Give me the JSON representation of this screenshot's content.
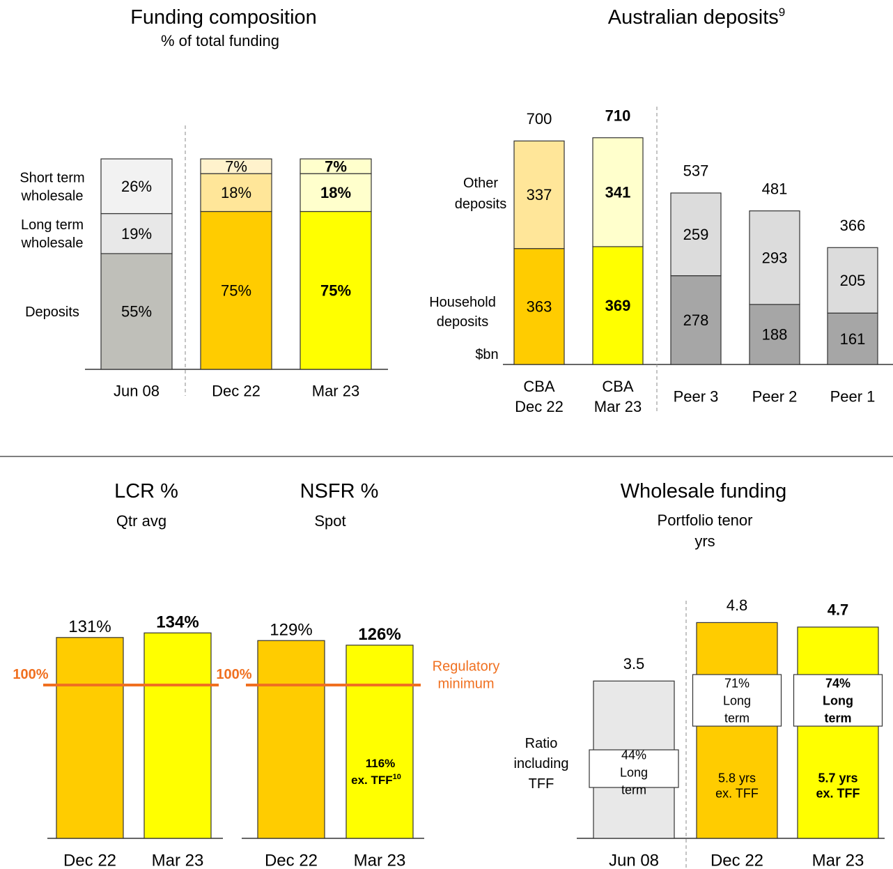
{
  "colors": {
    "gold": "#ffcc00",
    "yellow": "#ffff00",
    "light_gold": "#ffe699",
    "light_yellow": "#ffffcc",
    "pale_yellow": "#fff2cc",
    "grey_dark": "#bfbfb9",
    "grey_mid": "#e8e8e8",
    "grey_light": "#f2f2f2",
    "peer_dark": "#a6a6a6",
    "peer_light": "#dcdcdc",
    "reg_orange": "#f07020"
  },
  "chart_data": [
    {
      "type": "bar",
      "stacked": true,
      "title": "Funding composition",
      "subtitle": "% of total funding",
      "categories": [
        "Jun 08",
        "Dec 22",
        "Mar 23"
      ],
      "series": [
        {
          "name": "Deposits",
          "values": [
            55,
            75,
            75
          ],
          "labels": [
            "55%",
            "75%",
            "75%"
          ]
        },
        {
          "name": "Long term wholesale",
          "values": [
            19,
            18,
            18
          ],
          "labels": [
            "19%",
            "18%",
            "18%"
          ]
        },
        {
          "name": "Short term wholesale",
          "values": [
            26,
            7,
            7
          ],
          "labels": [
            "26%",
            "7%",
            "7%"
          ]
        }
      ],
      "series_labels": [
        "Deposits",
        "Long term\nwholesale",
        "Short term\nwholesale"
      ],
      "bold_category": "Mar 23"
    },
    {
      "type": "bar",
      "stacked": true,
      "title": "Australian deposits",
      "title_superscript": "9",
      "unit_label": "$bn",
      "categories": [
        "CBA\nDec 22",
        "CBA\nMar 23",
        "Peer 3",
        "Peer 2",
        "Peer 1"
      ],
      "series": [
        {
          "name": "Household deposits",
          "values": [
            363,
            369,
            278,
            188,
            161
          ]
        },
        {
          "name": "Other deposits",
          "values": [
            337,
            341,
            259,
            293,
            205
          ]
        }
      ],
      "series_labels": [
        "Household\ndeposits",
        "Other\ndeposits"
      ],
      "totals": [
        700,
        710,
        537,
        481,
        366
      ],
      "bold_category": "CBA\nMar 23"
    },
    {
      "type": "bar",
      "title": "LCR %",
      "subtitle": "Qtr avg",
      "categories": [
        "Dec 22",
        "Mar 23"
      ],
      "values": [
        131,
        134
      ],
      "labels": [
        "131%",
        "134%"
      ],
      "reference_line": {
        "value": 100,
        "label": "100%"
      }
    },
    {
      "type": "bar",
      "title": "NSFR %",
      "subtitle": "Spot",
      "categories": [
        "Dec 22",
        "Mar 23"
      ],
      "values": [
        129,
        126
      ],
      "labels": [
        "129%",
        "126%"
      ],
      "reference_line": {
        "value": 100,
        "label": "100%",
        "note": "Regulatory\nminimum"
      },
      "inner_annotation": {
        "category": "Mar 23",
        "text": "116%",
        "text2": "ex. TFF",
        "superscript": "10"
      }
    },
    {
      "type": "bar",
      "title": "Wholesale funding",
      "subtitle": "Portfolio tenor\nyrs",
      "categories": [
        "Jun 08",
        "Dec 22",
        "Mar 23"
      ],
      "values": [
        3.5,
        4.8,
        4.7
      ],
      "labels": [
        "3.5",
        "4.8",
        "4.7"
      ],
      "row_label": "Ratio\nincluding\nTFF",
      "boxes": [
        "44%\nLong\nterm",
        "71%\nLong\nterm",
        "74%\nLong\nterm"
      ],
      "ex_tff": [
        "",
        "5.8 yrs\nex. TFF",
        "5.7 yrs\nex. TFF"
      ]
    }
  ]
}
